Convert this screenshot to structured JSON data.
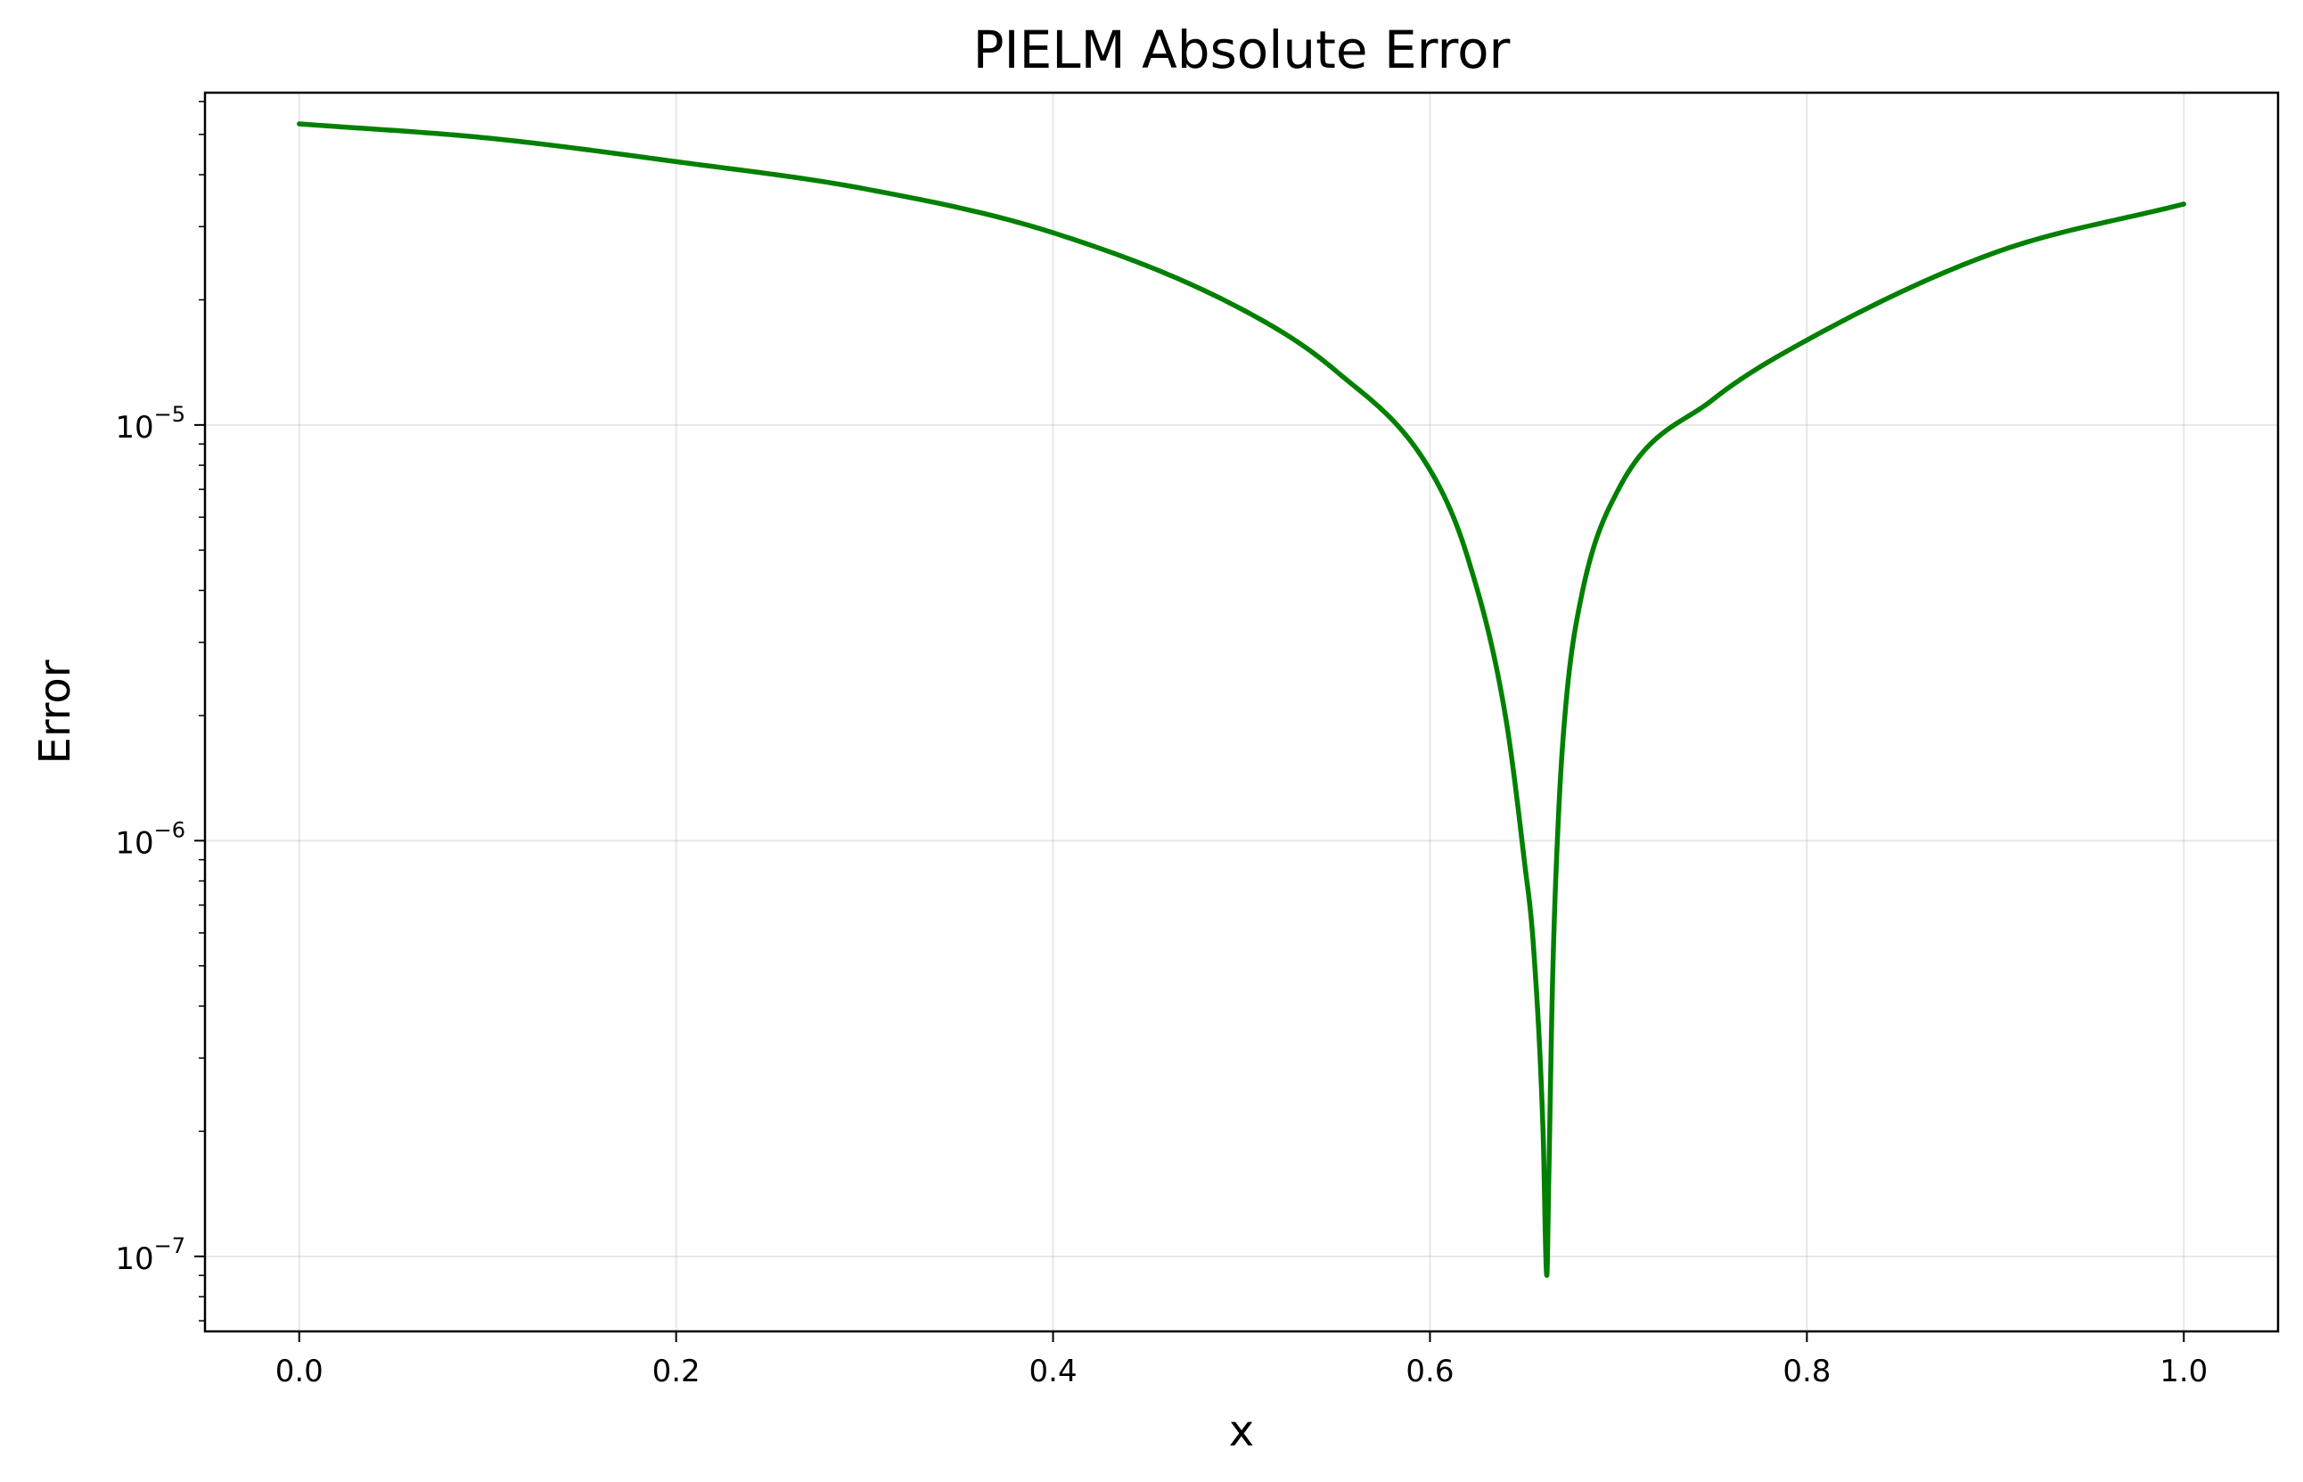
{
  "chart_data": {
    "type": "line",
    "title": "PIELM Absolute Error",
    "xlabel": "x",
    "ylabel": "Error",
    "yscale": "log",
    "grid": true,
    "xlim": [
      -0.05,
      1.05
    ],
    "ylim": [
      6.6e-08,
      6.3e-05
    ],
    "x_ticks": [
      {
        "value": 0.0,
        "label": "0.0"
      },
      {
        "value": 0.2,
        "label": "0.2"
      },
      {
        "value": 0.4,
        "label": "0.4"
      },
      {
        "value": 0.6,
        "label": "0.6"
      },
      {
        "value": 0.8,
        "label": "0.8"
      },
      {
        "value": 1.0,
        "label": "1.0"
      }
    ],
    "y_ticks": [
      {
        "value": 1e-07,
        "base": "10",
        "exponent": "−7"
      },
      {
        "value": 1e-06,
        "base": "10",
        "exponent": "−6"
      },
      {
        "value": 1e-05,
        "base": "10",
        "exponent": "−5"
      }
    ],
    "series": [
      {
        "color": "#008000",
        "x": [
          0.0,
          0.1,
          0.2,
          0.3,
          0.4,
          0.5,
          0.55,
          0.6,
          0.62,
          0.64,
          0.65,
          0.655,
          0.66,
          0.662,
          0.663,
          0.665,
          0.668,
          0.672,
          0.68,
          0.7,
          0.75,
          0.8,
          0.9,
          1.0
        ],
        "y": [
          5.3e-05,
          4.9e-05,
          4.3e-05,
          3.7e-05,
          2.9e-05,
          1.9e-05,
          1.35e-05,
          7.8e-06,
          4.8e-06,
          2e-06,
          9e-07,
          5.5e-07,
          2e-07,
          9e-08,
          1.5e-07,
          4.5e-07,
          1.1e-06,
          2.1e-06,
          3.8e-06,
          7e-06,
          1.15e-05,
          1.6e-05,
          2.6e-05,
          3.4e-05
        ]
      }
    ]
  }
}
